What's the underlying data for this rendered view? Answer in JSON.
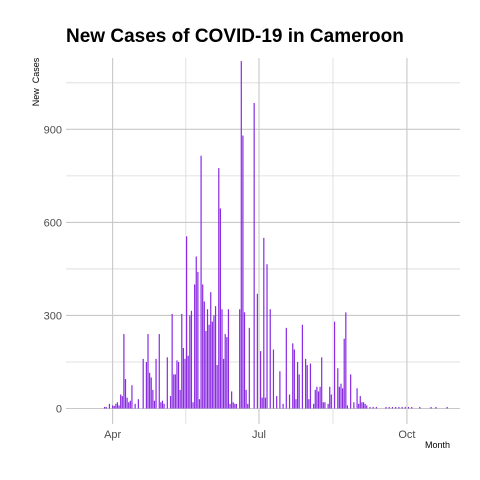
{
  "chart_data": {
    "type": "bar",
    "title": "New Cases of COVID-19 in Cameroon",
    "xlabel": "Month",
    "ylabel": "New  Cases",
    "bar_color": "#8a2be2",
    "grid": true,
    "x_unit": "day of year 2020",
    "xlim": [
      63,
      308
    ],
    "ylim": [
      -50,
      1130
    ],
    "x_ticks": [
      {
        "label": "Apr",
        "day": 92
      },
      {
        "label": "Jul",
        "day": 183
      },
      {
        "label": "Oct",
        "day": 275
      }
    ],
    "y_ticks": [
      0,
      300,
      600,
      900
    ],
    "x": [
      87,
      88,
      90,
      92,
      93,
      94,
      95,
      96,
      97,
      98,
      99,
      100,
      101,
      102,
      103,
      104,
      106,
      108,
      111,
      113,
      114,
      115,
      116,
      117,
      118,
      119,
      121,
      122,
      123,
      124,
      126,
      128,
      129,
      130,
      131,
      132,
      133,
      134,
      135,
      136,
      137,
      138,
      139,
      140,
      141,
      142,
      143,
      144,
      145,
      146,
      147,
      148,
      149,
      150,
      151,
      152,
      153,
      154,
      155,
      156,
      157,
      158,
      159,
      160,
      161,
      162,
      163,
      164,
      165,
      166,
      167,
      168,
      169,
      171,
      172,
      173,
      174,
      175,
      176,
      177,
      180,
      182,
      184,
      185,
      186,
      187,
      188,
      190,
      192,
      194,
      196,
      198,
      200,
      202,
      204,
      205,
      206,
      207,
      208,
      210,
      212,
      213,
      214,
      215,
      217,
      218,
      219,
      220,
      221,
      222,
      223,
      224,
      226,
      227,
      228,
      230,
      232,
      233,
      234,
      235,
      236,
      237,
      238,
      240,
      242,
      244,
      245,
      246,
      247,
      248,
      249,
      250,
      252,
      254,
      256,
      262,
      264,
      266,
      268,
      270,
      272,
      274,
      276,
      278,
      283,
      290,
      293,
      300
    ],
    "values": [
      5,
      5,
      15,
      10,
      8,
      15,
      20,
      10,
      45,
      40,
      240,
      95,
      35,
      20,
      25,
      75,
      15,
      30,
      160,
      150,
      240,
      115,
      100,
      60,
      25,
      160,
      240,
      20,
      25,
      15,
      165,
      40,
      305,
      110,
      110,
      155,
      150,
      60,
      305,
      195,
      160,
      555,
      170,
      300,
      315,
      20,
      400,
      490,
      440,
      30,
      815,
      400,
      345,
      250,
      320,
      270,
      375,
      280,
      300,
      330,
      140,
      775,
      645,
      320,
      160,
      240,
      230,
      320,
      15,
      55,
      20,
      15,
      15,
      320,
      1120,
      880,
      310,
      60,
      15,
      260,
      985,
      370,
      185,
      35,
      550,
      35,
      465,
      320,
      190,
      40,
      120,
      15,
      260,
      45,
      210,
      190,
      30,
      150,
      110,
      270,
      160,
      140,
      30,
      145,
      15,
      60,
      70,
      55,
      70,
      165,
      20,
      20,
      15,
      70,
      45,
      280,
      130,
      70,
      80,
      65,
      225,
      310,
      10,
      110,
      20,
      65,
      15,
      40,
      20,
      20,
      15,
      10,
      5,
      5,
      5,
      5,
      5,
      5,
      5,
      5,
      5,
      5,
      5,
      5,
      5,
      5,
      5,
      5
    ]
  }
}
